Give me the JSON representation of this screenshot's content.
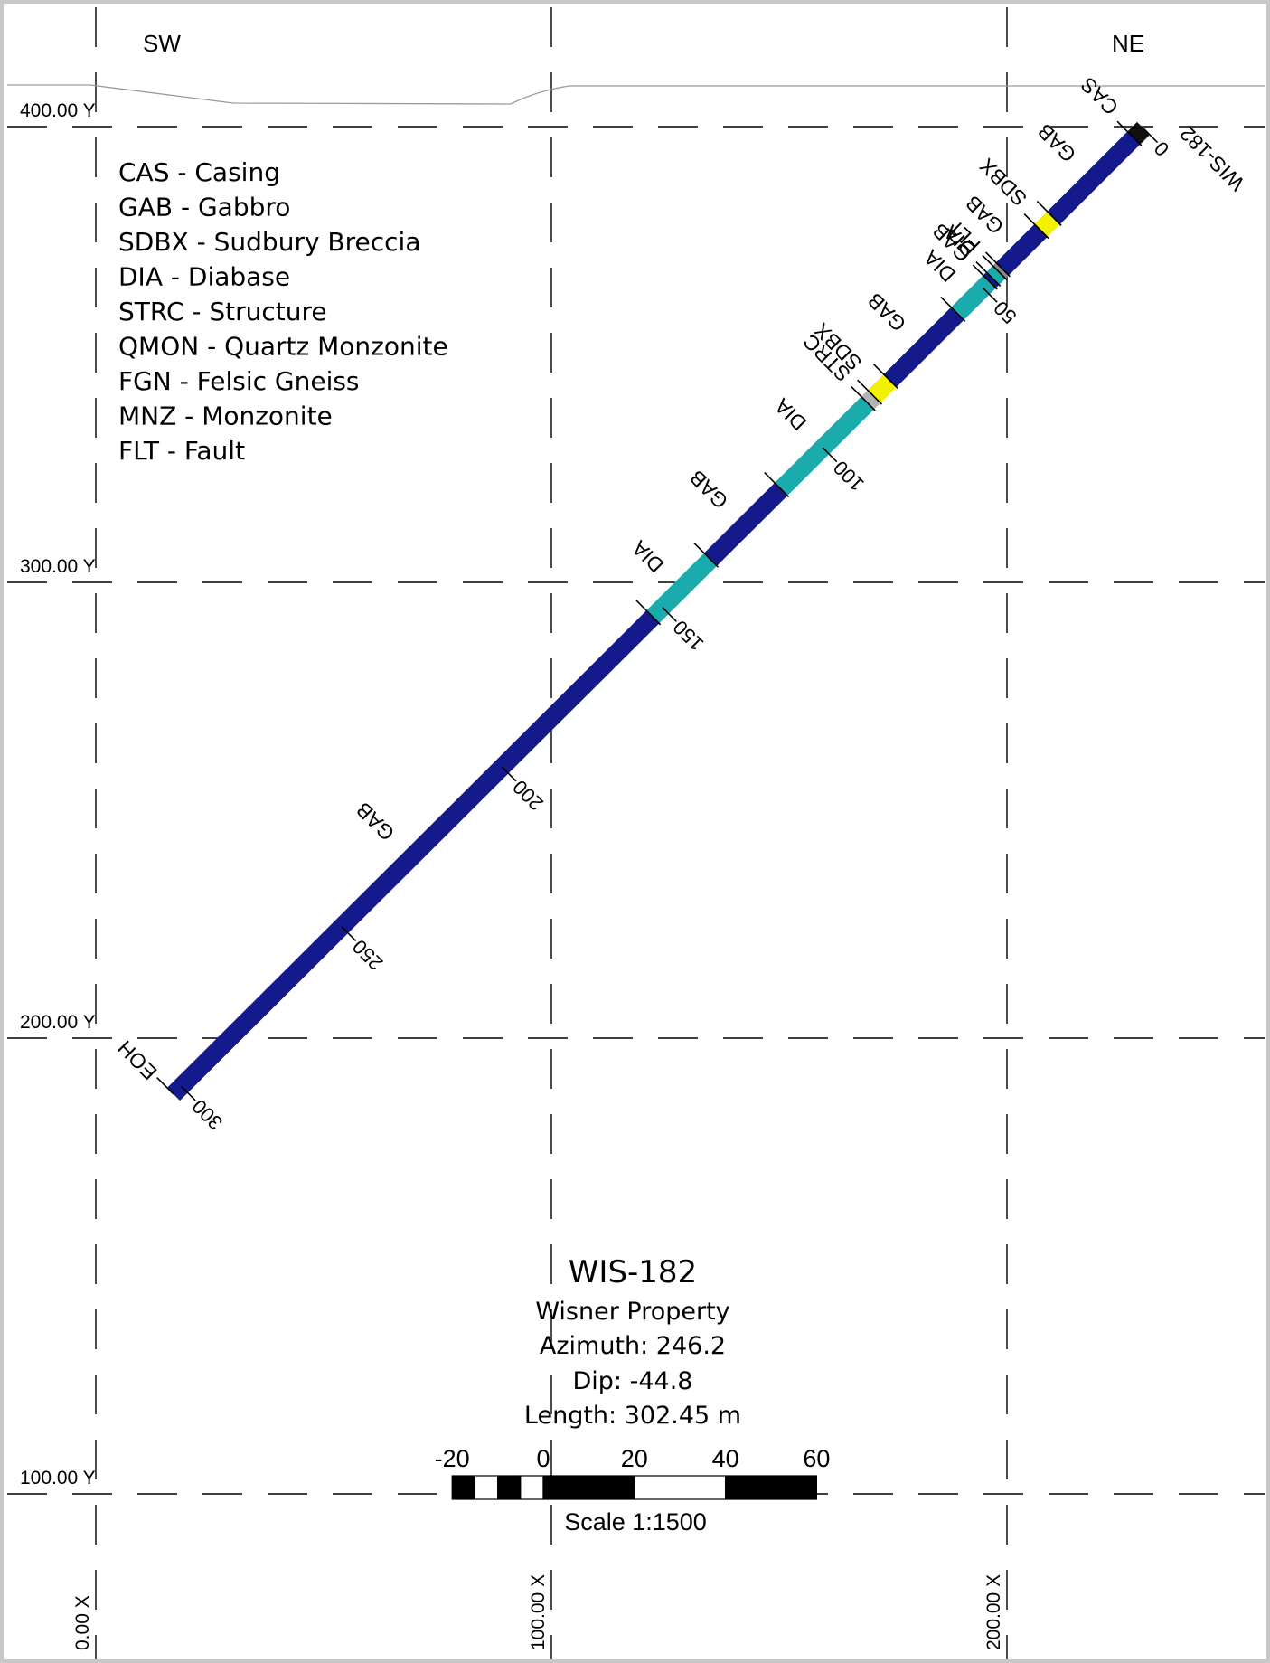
{
  "directions": {
    "left": "SW",
    "right": "NE"
  },
  "grid": {
    "y_levels": [
      {
        "value": 400,
        "label": "400.00 Y"
      },
      {
        "value": 300,
        "label": "300.00 Y"
      },
      {
        "value": 200,
        "label": "200.00 Y"
      },
      {
        "value": 100,
        "label": "100.00 Y"
      }
    ],
    "x_levels": [
      {
        "value": 0,
        "label": "0.00 X"
      },
      {
        "value": 100,
        "label": "100.00 X"
      },
      {
        "value": 200,
        "label": "200.00 X"
      }
    ]
  },
  "legend": [
    "CAS - Casing",
    "GAB - Gabbro",
    "SDBX - Sudbury Breccia",
    "DIA - Diabase",
    "STRC - Structure",
    "QMON - Quartz Monzonite",
    "FGN - Felsic Gneiss",
    "MNZ - Monzonite",
    "FLT - Fault"
  ],
  "hole": {
    "name": "WIS-182",
    "collar_label": "WIS-182",
    "eoh_label": "EOH",
    "length": 302.45,
    "dip": -44.8,
    "depth_markers": [
      0,
      50,
      100,
      150,
      200,
      250,
      300
    ],
    "colors": {
      "CAS": "#111111",
      "GAB": "#141a8c",
      "SDBX": "#f2f200",
      "DIA": "#1aacac",
      "STRC": "#b4b4b4",
      "FLT": "#8a8a8a"
    },
    "intervals": [
      {
        "from": 0,
        "to": 3,
        "unit": "CAS",
        "label": "CAS"
      },
      {
        "from": 3,
        "to": 28,
        "unit": "GAB",
        "label": "GAB"
      },
      {
        "from": 28,
        "to": 32,
        "unit": "SDBX",
        "label": "SDBX"
      },
      {
        "from": 32,
        "to": 44,
        "unit": "GAB",
        "label": "GAB"
      },
      {
        "from": 44,
        "to": 45,
        "unit": "FLT",
        "label": "FLT"
      },
      {
        "from": 45,
        "to": 47,
        "unit": "DIA",
        "label": "DIA"
      },
      {
        "from": 47,
        "to": 48,
        "unit": "GAB",
        "label": "GAB"
      },
      {
        "from": 48,
        "to": 58,
        "unit": "DIA",
        "label": "DIA"
      },
      {
        "from": 58,
        "to": 79,
        "unit": "GAB",
        "label": "GAB"
      },
      {
        "from": 79,
        "to": 84,
        "unit": "SDBX",
        "label": "SDBX"
      },
      {
        "from": 84,
        "to": 86,
        "unit": "STRC",
        "label": "STRC"
      },
      {
        "from": 86,
        "to": 113,
        "unit": "DIA",
        "label": "DIA"
      },
      {
        "from": 113,
        "to": 135,
        "unit": "GAB",
        "label": "GAB"
      },
      {
        "from": 135,
        "to": 153,
        "unit": "DIA",
        "label": "DIA"
      },
      {
        "from": 153,
        "to": 302.45,
        "unit": "GAB",
        "label": "GAB"
      }
    ]
  },
  "info": {
    "title": "WIS-182",
    "property": "Wisner Property",
    "azimuth": "Azimuth: 246.2",
    "dip": "Dip: -44.8",
    "length": "Length: 302.45 m"
  },
  "scale_bar": {
    "labels": [
      "-20",
      "0",
      "20",
      "40",
      "60"
    ],
    "caption": "Scale 1:1500"
  }
}
